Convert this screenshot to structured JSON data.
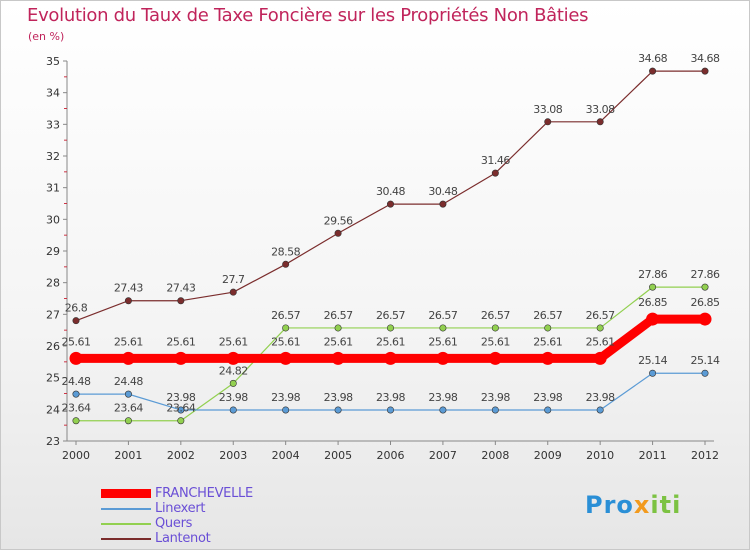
{
  "title": "Evolution du Taux de Taxe Foncière sur les Propriétés Non Bâties",
  "unit_label": "(en %)",
  "logo": {
    "text": "Proxiti"
  },
  "colors": {
    "FRANCHEVELLE": "#ff0000",
    "Linexert": "#5b9bd5",
    "Quers": "#92d050",
    "Lantenot": "#7b2d2d",
    "axis": "#888888",
    "tick_text": "#333333",
    "label_text": "#444444"
  },
  "chart_data": {
    "type": "line",
    "title": "Evolution du Taux de Taxe Foncière sur les Propriétés Non Bâties",
    "ylabel": "(en %)",
    "xlabel": "",
    "ylim": [
      23,
      35
    ],
    "yticks": [
      23,
      24,
      25,
      26,
      27,
      28,
      29,
      30,
      31,
      32,
      33,
      34,
      35
    ],
    "categories": [
      "2000",
      "2001",
      "2002",
      "2003",
      "2004",
      "2005",
      "2006",
      "2007",
      "2008",
      "2009",
      "2010",
      "2011",
      "2012"
    ],
    "series": [
      {
        "name": "FRANCHEVELLE",
        "values": [
          25.61,
          25.61,
          25.61,
          25.61,
          25.61,
          25.61,
          25.61,
          25.61,
          25.61,
          25.61,
          25.61,
          26.85,
          26.85
        ],
        "labels": [
          "25.61",
          "25.61",
          "25.61",
          "25.61",
          "25.61",
          "25.61",
          "25.61",
          "25.61",
          "25.61",
          "25.61",
          "25.61",
          "26.85",
          "26.85"
        ]
      },
      {
        "name": "Linexert",
        "values": [
          24.48,
          24.48,
          23.98,
          23.98,
          23.98,
          23.98,
          23.98,
          23.98,
          23.98,
          23.98,
          23.98,
          25.14,
          25.14
        ],
        "labels": [
          "24.48",
          "24.48",
          "23.98",
          "23.98",
          "23.98",
          "23.98",
          "23.98",
          "23.98",
          "23.98",
          "23.98",
          "23.98",
          "25.14",
          "25.14"
        ]
      },
      {
        "name": "Quers",
        "values": [
          23.64,
          23.64,
          23.64,
          24.82,
          26.57,
          26.57,
          26.57,
          26.57,
          26.57,
          26.57,
          26.57,
          27.86,
          27.86
        ],
        "labels": [
          "23.64",
          "23.64",
          "23.64",
          "24.82",
          "26.57",
          "26.57",
          "26.57",
          "26.57",
          "26.57",
          "26.57",
          "26.57",
          "27.86",
          "27.86"
        ]
      },
      {
        "name": "Lantenot",
        "values": [
          26.8,
          27.43,
          27.43,
          27.7,
          28.58,
          29.56,
          30.48,
          30.48,
          31.46,
          33.08,
          33.08,
          34.68,
          34.68
        ],
        "labels": [
          "26.8",
          "27.43",
          "27.43",
          "27.7",
          "28.58",
          "29.56",
          "30.48",
          "30.48",
          "31.46",
          "33.08",
          "33.08",
          "34.68",
          "34.68"
        ]
      }
    ],
    "legend": [
      "FRANCHEVELLE",
      "Linexert",
      "Quers",
      "Lantenot"
    ],
    "legend_position": "bottom-left",
    "grid": false
  }
}
